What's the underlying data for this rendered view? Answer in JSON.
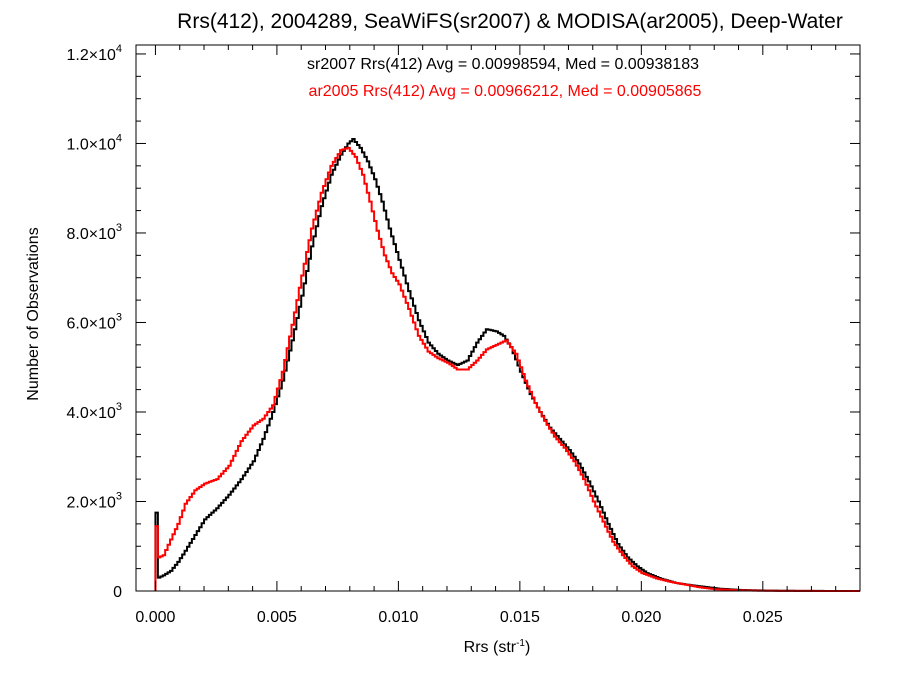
{
  "chart_data": {
    "type": "line",
    "title": "Rrs(412), 2004289, SeaWiFS(sr2007) & MODISA(ar2005), Deep-Water",
    "xlabel": "Rrs (str",
    "xlabel_sup": "-1",
    "xlabel_close": ")",
    "ylabel": "Number of Observations",
    "xlim": [
      -0.0008,
      0.029
    ],
    "ylim": [
      0,
      12200
    ],
    "grid": false,
    "annotations": [
      {
        "text": "sr2007 Rrs(412) Avg = 0.00998594, Med = 0.00938183",
        "color": "#000000"
      },
      {
        "text": "ar2005 Rrs(412) Avg = 0.00966212, Med = 0.00905865",
        "color": "#ff0000"
      }
    ],
    "x_ticks": [
      {
        "value": 0.0,
        "label": "0.000"
      },
      {
        "value": 0.005,
        "label": "0.005"
      },
      {
        "value": 0.01,
        "label": "0.010"
      },
      {
        "value": 0.015,
        "label": "0.015"
      },
      {
        "value": 0.02,
        "label": "0.020"
      },
      {
        "value": 0.025,
        "label": "0.025"
      }
    ],
    "y_ticks": [
      {
        "value": 0,
        "mant": "0",
        "exp": ""
      },
      {
        "value": 2000,
        "mant": "2.0×10",
        "exp": "3"
      },
      {
        "value": 4000,
        "mant": "4.0×10",
        "exp": "3"
      },
      {
        "value": 6000,
        "mant": "6.0×10",
        "exp": "3"
      },
      {
        "value": 8000,
        "mant": "8.0×10",
        "exp": "3"
      },
      {
        "value": 10000,
        "mant": "1.0×10",
        "exp": "4"
      },
      {
        "value": 12000,
        "mant": "1.2×10",
        "exp": "4"
      }
    ],
    "series": [
      {
        "name": "sr2007",
        "color": "#000000",
        "points": [
          [
            0.0,
            1750
          ],
          [
            0.0001,
            300
          ],
          [
            0.0003,
            350
          ],
          [
            0.0006,
            450
          ],
          [
            0.0009,
            650
          ],
          [
            0.0012,
            900
          ],
          [
            0.0016,
            1250
          ],
          [
            0.002,
            1600
          ],
          [
            0.0025,
            1850
          ],
          [
            0.003,
            2150
          ],
          [
            0.0035,
            2500
          ],
          [
            0.004,
            2900
          ],
          [
            0.0044,
            3400
          ],
          [
            0.0048,
            4000
          ],
          [
            0.0052,
            4700
          ],
          [
            0.0056,
            5600
          ],
          [
            0.006,
            6600
          ],
          [
            0.0064,
            7700
          ],
          [
            0.0068,
            8600
          ],
          [
            0.0072,
            9300
          ],
          [
            0.0076,
            9750
          ],
          [
            0.0079,
            10000
          ],
          [
            0.0081,
            10100
          ],
          [
            0.0084,
            9900
          ],
          [
            0.0087,
            9600
          ],
          [
            0.009,
            9200
          ],
          [
            0.0093,
            8700
          ],
          [
            0.0096,
            8100
          ],
          [
            0.01,
            7400
          ],
          [
            0.0104,
            6700
          ],
          [
            0.0108,
            6050
          ],
          [
            0.0112,
            5550
          ],
          [
            0.0116,
            5300
          ],
          [
            0.012,
            5150
          ],
          [
            0.0124,
            5050
          ],
          [
            0.0128,
            5150
          ],
          [
            0.0132,
            5550
          ],
          [
            0.0136,
            5850
          ],
          [
            0.014,
            5800
          ],
          [
            0.0143,
            5700
          ],
          [
            0.0146,
            5450
          ],
          [
            0.015,
            4900
          ],
          [
            0.0154,
            4400
          ],
          [
            0.0158,
            4000
          ],
          [
            0.0162,
            3650
          ],
          [
            0.0166,
            3400
          ],
          [
            0.017,
            3150
          ],
          [
            0.0174,
            2850
          ],
          [
            0.0178,
            2450
          ],
          [
            0.0182,
            2000
          ],
          [
            0.0186,
            1500
          ],
          [
            0.019,
            1050
          ],
          [
            0.0194,
            750
          ],
          [
            0.0198,
            550
          ],
          [
            0.0202,
            400
          ],
          [
            0.0208,
            270
          ],
          [
            0.0214,
            180
          ],
          [
            0.022,
            130
          ],
          [
            0.0226,
            90
          ],
          [
            0.0232,
            50
          ],
          [
            0.024,
            25
          ],
          [
            0.025,
            10
          ],
          [
            0.026,
            5
          ],
          [
            0.027,
            2
          ],
          [
            0.0285,
            0
          ]
        ]
      },
      {
        "name": "ar2005",
        "color": "#ff0000",
        "points": [
          [
            0.0,
            1450
          ],
          [
            0.0001,
            750
          ],
          [
            0.0003,
            800
          ],
          [
            0.0006,
            1150
          ],
          [
            0.0009,
            1500
          ],
          [
            0.0012,
            1950
          ],
          [
            0.0016,
            2250
          ],
          [
            0.002,
            2400
          ],
          [
            0.0025,
            2500
          ],
          [
            0.003,
            2800
          ],
          [
            0.0035,
            3350
          ],
          [
            0.004,
            3700
          ],
          [
            0.0044,
            3850
          ],
          [
            0.0048,
            4150
          ],
          [
            0.0052,
            4900
          ],
          [
            0.0056,
            5950
          ],
          [
            0.006,
            7050
          ],
          [
            0.0064,
            8100
          ],
          [
            0.0068,
            8900
          ],
          [
            0.0072,
            9500
          ],
          [
            0.0076,
            9850
          ],
          [
            0.0079,
            9900
          ],
          [
            0.0082,
            9700
          ],
          [
            0.0085,
            9300
          ],
          [
            0.0088,
            8700
          ],
          [
            0.0091,
            8050
          ],
          [
            0.0094,
            7500
          ],
          [
            0.0097,
            7100
          ],
          [
            0.01,
            6850
          ],
          [
            0.0104,
            6300
          ],
          [
            0.0108,
            5700
          ],
          [
            0.0112,
            5350
          ],
          [
            0.0116,
            5200
          ],
          [
            0.012,
            5100
          ],
          [
            0.0124,
            4950
          ],
          [
            0.0128,
            4950
          ],
          [
            0.0132,
            5150
          ],
          [
            0.0136,
            5400
          ],
          [
            0.014,
            5500
          ],
          [
            0.0144,
            5600
          ],
          [
            0.0148,
            5300
          ],
          [
            0.0152,
            4700
          ],
          [
            0.0156,
            4200
          ],
          [
            0.016,
            3800
          ],
          [
            0.0164,
            3450
          ],
          [
            0.0168,
            3200
          ],
          [
            0.0172,
            2900
          ],
          [
            0.0176,
            2500
          ],
          [
            0.018,
            2000
          ],
          [
            0.0184,
            1550
          ],
          [
            0.0188,
            1100
          ],
          [
            0.0192,
            800
          ],
          [
            0.0196,
            550
          ],
          [
            0.02,
            400
          ],
          [
            0.0206,
            280
          ],
          [
            0.0212,
            200
          ],
          [
            0.0218,
            140
          ],
          [
            0.0224,
            80
          ],
          [
            0.023,
            40
          ],
          [
            0.024,
            15
          ],
          [
            0.025,
            5
          ],
          [
            0.0265,
            2
          ],
          [
            0.0285,
            0
          ]
        ]
      }
    ]
  }
}
